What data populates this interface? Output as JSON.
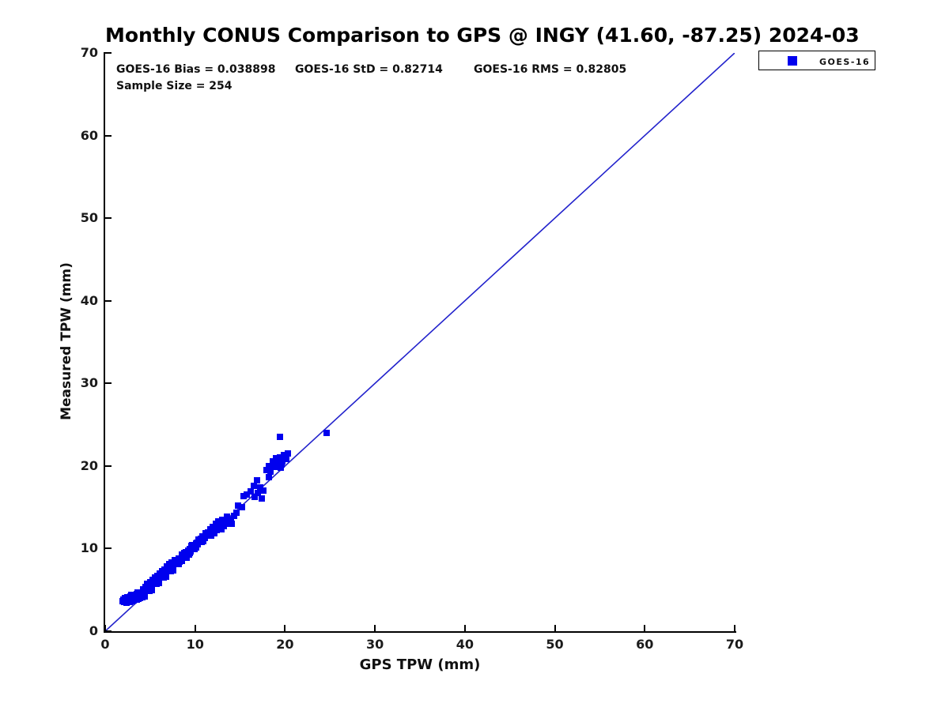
{
  "title": "Monthly CONUS Comparison to GPS @ INGY (41.60, -87.25) 2024-03",
  "stats": {
    "bias": "GOES-16 Bias = 0.038898",
    "std": "GOES-16 StD = 0.82714",
    "rms": "GOES-16 RMS = 0.82805",
    "sample_size": "Sample Size = 254"
  },
  "legend": {
    "entries": [
      {
        "label": "GOES-16",
        "marker": "square",
        "marker_color": "#0000ee"
      }
    ],
    "position": "top-right-outside"
  },
  "colors": {
    "marker": "#0000ee",
    "reference_line": "#2222cc",
    "axis": "#000000",
    "text": "#111111",
    "background": "#ffffff"
  },
  "chart_data": {
    "type": "scatter",
    "title": "Monthly CONUS Comparison to GPS @ INGY (41.60, -87.25) 2024-03",
    "xlabel": "GPS TPW (mm)",
    "ylabel": "Measured TPW (mm)",
    "xlim": [
      0,
      70
    ],
    "ylim": [
      0,
      70
    ],
    "xticks": [
      0,
      10,
      20,
      30,
      40,
      50,
      60,
      70
    ],
    "yticks": [
      0,
      10,
      20,
      30,
      40,
      50,
      60,
      70
    ],
    "grid": false,
    "sample_size": 254,
    "stats": {
      "bias": 0.038898,
      "std": 0.82714,
      "rms": 0.82805
    },
    "reference_line": {
      "from": [
        0,
        0
      ],
      "to": [
        70,
        70
      ],
      "color": "#2222cc"
    },
    "series": [
      {
        "name": "GOES-16",
        "marker": "square",
        "color": "#0000ee",
        "points": [
          [
            1.9,
            3.6
          ],
          [
            2.0,
            3.8
          ],
          [
            2.1,
            3.5
          ],
          [
            2.2,
            4.0
          ],
          [
            2.3,
            3.7
          ],
          [
            2.4,
            3.4
          ],
          [
            2.5,
            4.1
          ],
          [
            2.6,
            3.8
          ],
          [
            2.7,
            3.5
          ],
          [
            2.8,
            4.2
          ],
          [
            2.9,
            3.9
          ],
          [
            3.0,
            3.6
          ],
          [
            3.0,
            4.3
          ],
          [
            3.1,
            4.0
          ],
          [
            3.2,
            3.7
          ],
          [
            3.3,
            4.4
          ],
          [
            3.4,
            4.1
          ],
          [
            3.5,
            3.8
          ],
          [
            3.5,
            4.5
          ],
          [
            3.6,
            4.2
          ],
          [
            3.7,
            3.9
          ],
          [
            3.8,
            4.6
          ],
          [
            3.8,
            4.3
          ],
          [
            3.9,
            4.0
          ],
          [
            4.0,
            4.7
          ],
          [
            4.0,
            4.4
          ],
          [
            3.2,
            4.3
          ],
          [
            2.6,
            4.1
          ],
          [
            3.6,
            4.7
          ],
          [
            2.9,
            4.4
          ],
          [
            4.1,
            4.6
          ],
          [
            4.2,
            5.0
          ],
          [
            4.3,
            4.6
          ],
          [
            4.4,
            5.0
          ],
          [
            4.5,
            5.4
          ],
          [
            4.6,
            5.0
          ],
          [
            4.7,
            5.4
          ],
          [
            4.8,
            5.0
          ],
          [
            4.9,
            5.4
          ],
          [
            5.0,
            5.8
          ],
          [
            5.1,
            5.4
          ],
          [
            5.2,
            5.8
          ],
          [
            5.3,
            6.2
          ],
          [
            5.4,
            5.8
          ],
          [
            5.5,
            6.2
          ],
          [
            5.6,
            5.8
          ],
          [
            5.7,
            6.2
          ],
          [
            5.8,
            6.6
          ],
          [
            5.9,
            6.2
          ],
          [
            6.0,
            6.6
          ],
          [
            6.1,
            7.0
          ],
          [
            6.2,
            6.6
          ],
          [
            6.3,
            7.0
          ],
          [
            6.4,
            6.6
          ],
          [
            6.5,
            7.0
          ],
          [
            6.6,
            7.4
          ],
          [
            6.7,
            7.0
          ],
          [
            6.8,
            7.4
          ],
          [
            6.9,
            7.8
          ],
          [
            7.0,
            7.4
          ],
          [
            7.1,
            7.8
          ],
          [
            7.2,
            7.4
          ],
          [
            7.3,
            7.8
          ],
          [
            7.4,
            8.2
          ],
          [
            7.5,
            7.8
          ],
          [
            7.6,
            8.2
          ],
          [
            7.7,
            8.6
          ],
          [
            7.8,
            8.2
          ],
          [
            7.9,
            8.6
          ],
          [
            8.0,
            8.2
          ],
          [
            4.1,
            4.1
          ],
          [
            4.2,
            4.5
          ],
          [
            4.3,
            4.9
          ],
          [
            4.4,
            4.5
          ],
          [
            4.5,
            4.9
          ],
          [
            4.6,
            5.3
          ],
          [
            4.7,
            4.9
          ],
          [
            4.8,
            5.3
          ],
          [
            4.9,
            4.9
          ],
          [
            5.0,
            5.3
          ],
          [
            5.1,
            5.7
          ],
          [
            5.2,
            5.3
          ],
          [
            5.3,
            5.7
          ],
          [
            5.4,
            6.1
          ],
          [
            5.5,
            5.7
          ],
          [
            5.6,
            6.1
          ],
          [
            5.7,
            5.7
          ],
          [
            5.8,
            6.1
          ],
          [
            5.9,
            6.5
          ],
          [
            6.0,
            6.1
          ],
          [
            6.1,
            6.5
          ],
          [
            6.2,
            6.9
          ],
          [
            6.3,
            6.5
          ],
          [
            6.4,
            6.9
          ],
          [
            6.5,
            6.5
          ],
          [
            6.6,
            6.9
          ],
          [
            6.7,
            7.3
          ],
          [
            6.8,
            6.9
          ],
          [
            6.9,
            7.3
          ],
          [
            7.0,
            7.7
          ],
          [
            7.1,
            7.3
          ],
          [
            7.2,
            7.7
          ],
          [
            7.3,
            7.3
          ],
          [
            7.4,
            7.7
          ],
          [
            7.5,
            8.1
          ],
          [
            7.6,
            7.7
          ],
          [
            7.7,
            8.1
          ],
          [
            7.8,
            8.5
          ],
          [
            7.9,
            8.1
          ],
          [
            8.0,
            8.5
          ],
          [
            4.2,
            5.1
          ],
          [
            4.3,
            4.5
          ],
          [
            4.4,
            4.2
          ],
          [
            4.5,
            5.1
          ],
          [
            4.6,
            4.9
          ],
          [
            4.7,
            5.7
          ],
          [
            4.8,
            4.9
          ],
          [
            4.9,
            5.3
          ],
          [
            5.0,
            5.9
          ],
          [
            5.1,
            5.3
          ],
          [
            5.2,
            5.0
          ],
          [
            5.3,
            5.9
          ],
          [
            5.4,
            5.7
          ],
          [
            5.5,
            6.5
          ],
          [
            5.6,
            5.7
          ],
          [
            5.7,
            6.1
          ],
          [
            5.8,
            6.7
          ],
          [
            5.9,
            6.1
          ],
          [
            6.0,
            5.8
          ],
          [
            6.1,
            6.7
          ],
          [
            6.2,
            6.5
          ],
          [
            6.3,
            7.3
          ],
          [
            6.4,
            6.5
          ],
          [
            6.5,
            6.9
          ],
          [
            6.6,
            7.5
          ],
          [
            6.7,
            6.9
          ],
          [
            6.8,
            6.6
          ],
          [
            6.9,
            7.5
          ],
          [
            7.0,
            7.3
          ],
          [
            7.1,
            8.1
          ],
          [
            7.2,
            7.3
          ],
          [
            7.3,
            7.7
          ],
          [
            7.4,
            8.3
          ],
          [
            7.5,
            7.8
          ],
          [
            7.6,
            7.4
          ],
          [
            7.7,
            8.3
          ],
          [
            8.1,
            8.4
          ],
          [
            8.2,
            8.8
          ],
          [
            8.3,
            8.4
          ],
          [
            8.4,
            8.8
          ],
          [
            8.5,
            8.5
          ],
          [
            8.6,
            9.1
          ],
          [
            8.7,
            8.9
          ],
          [
            8.8,
            9.5
          ],
          [
            8.9,
            9.2
          ],
          [
            9.0,
            9.6
          ],
          [
            9.1,
            9.2
          ],
          [
            9.2,
            9.6
          ],
          [
            9.3,
            9.3
          ],
          [
            9.4,
            9.9
          ],
          [
            9.5,
            9.7
          ],
          [
            9.6,
            10.3
          ],
          [
            9.7,
            10.0
          ],
          [
            9.8,
            10.4
          ],
          [
            9.9,
            10.0
          ],
          [
            10.0,
            10.4
          ],
          [
            10.1,
            10.1
          ],
          [
            10.2,
            10.7
          ],
          [
            10.3,
            10.5
          ],
          [
            10.4,
            11.1
          ],
          [
            10.5,
            10.8
          ],
          [
            10.6,
            11.2
          ],
          [
            10.7,
            10.8
          ],
          [
            10.8,
            11.2
          ],
          [
            10.9,
            10.9
          ],
          [
            11.0,
            11.5
          ],
          [
            11.1,
            11.3
          ],
          [
            11.2,
            11.9
          ],
          [
            11.3,
            11.6
          ],
          [
            11.4,
            12.0
          ],
          [
            11.5,
            11.6
          ],
          [
            8.2,
            8.1
          ],
          [
            8.4,
            8.8
          ],
          [
            8.5,
            9.3
          ],
          [
            8.7,
            8.9
          ],
          [
            8.9,
            9.4
          ],
          [
            9.1,
            8.9
          ],
          [
            9.2,
            9.8
          ],
          [
            9.4,
            9.5
          ],
          [
            9.6,
            9.9
          ],
          [
            9.7,
            10.4
          ],
          [
            9.9,
            9.9
          ],
          [
            10.1,
            10.6
          ],
          [
            10.2,
            10.5
          ],
          [
            10.4,
            11.0
          ],
          [
            10.6,
            10.8
          ],
          [
            10.8,
            11.5
          ],
          [
            10.9,
            10.9
          ],
          [
            11.1,
            11.5
          ],
          [
            11.3,
            11.8
          ],
          [
            11.4,
            11.6
          ],
          [
            11.6,
            11.9
          ],
          [
            11.7,
            12.3
          ],
          [
            11.8,
            11.6
          ],
          [
            11.9,
            12.1
          ],
          [
            12.0,
            12.6
          ],
          [
            12.1,
            11.9
          ],
          [
            12.2,
            12.4
          ],
          [
            12.3,
            13.0
          ],
          [
            12.4,
            12.2
          ],
          [
            12.5,
            12.8
          ],
          [
            12.6,
            13.3
          ],
          [
            12.7,
            12.5
          ],
          [
            12.8,
            13.1
          ],
          [
            12.9,
            12.3
          ],
          [
            13.0,
            13.5
          ],
          [
            13.2,
            12.7
          ],
          [
            13.4,
            13.2
          ],
          [
            13.5,
            13.9
          ],
          [
            13.6,
            13.0
          ],
          [
            13.8,
            13.5
          ],
          [
            14.0,
            13.2
          ],
          [
            14.1,
            13.0
          ],
          [
            14.3,
            14.0
          ],
          [
            14.6,
            14.3
          ],
          [
            14.8,
            15.2
          ],
          [
            15.2,
            15.0
          ],
          [
            15.4,
            16.4
          ],
          [
            15.7,
            16.5
          ],
          [
            16.2,
            16.9
          ],
          [
            16.5,
            17.6
          ],
          [
            16.6,
            16.3
          ],
          [
            16.9,
            18.3
          ],
          [
            17.0,
            16.7
          ],
          [
            17.2,
            17.4
          ],
          [
            17.4,
            16.1
          ],
          [
            17.6,
            17.0
          ],
          [
            18.2,
            18.6
          ],
          [
            17.9,
            19.5
          ],
          [
            18.2,
            20.0
          ],
          [
            18.4,
            19.3
          ],
          [
            18.6,
            20.6
          ],
          [
            18.8,
            19.9
          ],
          [
            19.0,
            20.9
          ],
          [
            19.2,
            20.3
          ],
          [
            19.4,
            21.0
          ],
          [
            19.5,
            19.8
          ],
          [
            19.7,
            20.6
          ],
          [
            19.9,
            21.3
          ],
          [
            20.1,
            20.8
          ],
          [
            20.3,
            21.5
          ],
          [
            19.6,
            20.2
          ],
          [
            19.4,
            23.5
          ],
          [
            24.6,
            24.0
          ]
        ]
      }
    ]
  }
}
